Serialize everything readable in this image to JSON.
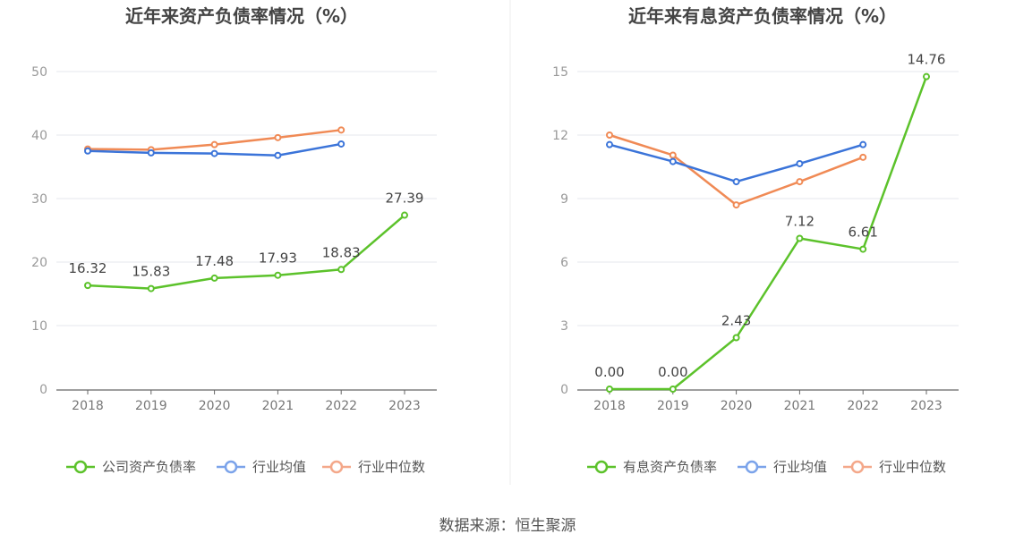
{
  "source_label": "数据来源：恒生聚源",
  "chart_data": [
    {
      "type": "line",
      "title": "近年来资产负债率情况（%）",
      "categories": [
        "2018",
        "2019",
        "2020",
        "2021",
        "2022",
        "2023"
      ],
      "yticks": [
        "0",
        "10",
        "20",
        "30",
        "40",
        "50"
      ],
      "ylim": [
        0,
        50
      ],
      "series": [
        {
          "name": "公司资产负债率",
          "color": "#5cc22b",
          "values": [
            16.32,
            15.83,
            17.48,
            17.93,
            18.83,
            27.39
          ],
          "labels": [
            "16.32",
            "15.83",
            "17.48",
            "17.93",
            "18.83",
            "27.39"
          ]
        },
        {
          "name": "行业均值",
          "color": "#3b74d9",
          "values": [
            37.5,
            37.2,
            37.1,
            36.8,
            38.6,
            null
          ]
        },
        {
          "name": "行业中位数",
          "color": "#f08a55",
          "values": [
            37.8,
            37.7,
            38.5,
            39.6,
            40.8,
            null
          ]
        }
      ],
      "legend": [
        "公司资产负债率",
        "行业均值",
        "行业中位数"
      ],
      "legend_colors": [
        "#5cc22b",
        "#7ba3ea",
        "#f4a88a"
      ]
    },
    {
      "type": "line",
      "title": "近年来有息资产负债率情况（%）",
      "categories": [
        "2018",
        "2019",
        "2020",
        "2021",
        "2022",
        "2023"
      ],
      "yticks": [
        "0",
        "3",
        "6",
        "9",
        "12",
        "15"
      ],
      "ylim": [
        0,
        15
      ],
      "series": [
        {
          "name": "有息资产负债率",
          "color": "#5cc22b",
          "values": [
            0.0,
            0.0,
            2.43,
            7.12,
            6.61,
            14.76
          ],
          "labels": [
            "0.00",
            "0.00",
            "2.43",
            "7.12",
            "6.61",
            "14.76"
          ]
        },
        {
          "name": "行业均值",
          "color": "#3b74d9",
          "values": [
            11.55,
            10.75,
            9.8,
            10.65,
            11.55,
            null
          ]
        },
        {
          "name": "行业中位数",
          "color": "#f08a55",
          "values": [
            12.0,
            11.05,
            8.7,
            9.8,
            10.95,
            null
          ]
        }
      ],
      "legend": [
        "有息资产负债率",
        "行业均值",
        "行业中位数"
      ],
      "legend_colors": [
        "#5cc22b",
        "#7ba3ea",
        "#f4a88a"
      ]
    }
  ]
}
